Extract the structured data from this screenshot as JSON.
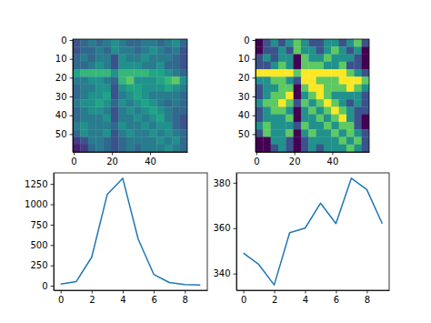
{
  "chart_data": [
    {
      "type": "heatmap",
      "x_edges": [
        -0.5,
        3.5,
        7.5,
        11.5,
        15.5,
        19.5,
        23.5,
        27.5,
        31.5,
        35.5,
        39.5,
        43.5,
        47.5,
        51.5,
        55.5,
        59.5
      ],
      "y_edges": [
        -0.5,
        3.5,
        7.5,
        11.5,
        15.5,
        19.5,
        23.5,
        27.5,
        31.5,
        35.5,
        39.5,
        43.5,
        47.5,
        51.5,
        55.5,
        59.5
      ],
      "cells": [
        [
          3,
          4,
          5,
          4,
          5,
          6,
          5,
          4,
          4,
          5,
          5,
          4,
          5,
          6,
          4
        ],
        [
          3,
          4,
          4,
          5,
          4,
          6,
          5,
          5,
          4,
          5,
          6,
          5,
          4,
          5,
          3
        ],
        [
          4,
          5,
          4,
          5,
          5,
          3,
          6,
          5,
          5,
          6,
          5,
          5,
          5,
          4,
          3
        ],
        [
          4,
          4,
          5,
          6,
          5,
          3,
          6,
          6,
          6,
          5,
          5,
          6,
          4,
          4,
          3
        ],
        [
          7,
          8,
          8,
          8,
          8,
          6,
          8,
          8,
          8,
          8,
          7,
          7,
          6,
          5,
          4
        ],
        [
          5,
          5,
          6,
          6,
          5,
          4,
          8,
          9,
          6,
          6,
          6,
          7,
          8,
          9,
          6
        ],
        [
          4,
          5,
          5,
          6,
          6,
          3,
          6,
          7,
          7,
          6,
          6,
          6,
          7,
          6,
          5
        ],
        [
          4,
          5,
          6,
          6,
          7,
          3,
          5,
          6,
          7,
          6,
          5,
          5,
          5,
          5,
          4
        ],
        [
          5,
          6,
          6,
          7,
          6,
          4,
          6,
          5,
          6,
          7,
          6,
          5,
          4,
          5,
          4
        ],
        [
          4,
          5,
          6,
          6,
          5,
          3,
          5,
          6,
          5,
          6,
          7,
          6,
          5,
          4,
          4
        ],
        [
          4,
          5,
          5,
          5,
          6,
          3,
          5,
          5,
          6,
          5,
          6,
          7,
          5,
          4,
          3
        ],
        [
          5,
          6,
          5,
          5,
          5,
          4,
          6,
          5,
          5,
          6,
          5,
          6,
          6,
          4,
          3
        ],
        [
          4,
          6,
          5,
          5,
          6,
          3,
          5,
          6,
          5,
          5,
          6,
          5,
          6,
          5,
          4
        ],
        [
          2,
          3,
          5,
          5,
          4,
          3,
          4,
          5,
          5,
          5,
          5,
          6,
          5,
          6,
          4
        ],
        [
          1,
          2,
          4,
          5,
          4,
          3,
          4,
          5,
          4,
          5,
          5,
          5,
          6,
          5,
          4
        ]
      ],
      "color_range": [
        0,
        12
      ],
      "xlim": [
        -0.5,
        59.5
      ],
      "ylim": [
        59.5,
        -0.5
      ],
      "xticks": [
        0,
        20,
        40
      ],
      "yticks": [
        0,
        10,
        20,
        30,
        40,
        50
      ]
    },
    {
      "type": "heatmap",
      "x_edges": [
        -0.5,
        3.5,
        7.5,
        11.5,
        15.5,
        19.5,
        23.5,
        27.5,
        31.5,
        35.5,
        39.5,
        43.5,
        47.5,
        51.5,
        55.5,
        59.5
      ],
      "y_edges": [
        -0.5,
        3.5,
        7.5,
        11.5,
        15.5,
        19.5,
        23.5,
        27.5,
        31.5,
        35.5,
        39.5,
        43.5,
        47.5,
        51.5,
        55.5,
        59.5
      ],
      "cells": [
        [
          3,
          4,
          5,
          4,
          5,
          6,
          5,
          4,
          4,
          5,
          5,
          4,
          5,
          6,
          4
        ],
        [
          3,
          4,
          4,
          5,
          4,
          6,
          5,
          5,
          4,
          5,
          6,
          5,
          4,
          5,
          3
        ],
        [
          4,
          5,
          4,
          5,
          5,
          3,
          6,
          5,
          5,
          6,
          5,
          5,
          5,
          4,
          3
        ],
        [
          4,
          4,
          5,
          6,
          5,
          3,
          6,
          6,
          6,
          5,
          5,
          6,
          4,
          4,
          3
        ],
        [
          7,
          8,
          8,
          8,
          8,
          6,
          8,
          8,
          8,
          8,
          7,
          7,
          6,
          5,
          4
        ],
        [
          5,
          5,
          6,
          6,
          5,
          4,
          8,
          9,
          6,
          6,
          6,
          7,
          8,
          9,
          6
        ],
        [
          4,
          5,
          5,
          6,
          6,
          3,
          6,
          7,
          7,
          6,
          6,
          6,
          7,
          6,
          5
        ],
        [
          4,
          5,
          6,
          6,
          7,
          3,
          5,
          6,
          7,
          6,
          5,
          5,
          5,
          5,
          4
        ],
        [
          5,
          6,
          6,
          7,
          6,
          4,
          6,
          5,
          6,
          7,
          6,
          5,
          4,
          5,
          4
        ],
        [
          4,
          5,
          6,
          6,
          5,
          3,
          5,
          6,
          5,
          6,
          7,
          6,
          5,
          4,
          4
        ],
        [
          4,
          5,
          5,
          5,
          6,
          3,
          5,
          5,
          6,
          5,
          6,
          7,
          5,
          4,
          3
        ],
        [
          5,
          6,
          5,
          5,
          5,
          4,
          6,
          5,
          5,
          6,
          5,
          6,
          6,
          4,
          3
        ],
        [
          4,
          6,
          5,
          5,
          6,
          3,
          5,
          6,
          5,
          5,
          6,
          5,
          6,
          5,
          4
        ],
        [
          2,
          3,
          5,
          5,
          4,
          3,
          4,
          5,
          5,
          5,
          5,
          6,
          5,
          6,
          4
        ],
        [
          1,
          2,
          4,
          5,
          4,
          3,
          4,
          5,
          4,
          5,
          5,
          5,
          6,
          5,
          4
        ]
      ],
      "color_range": [
        3,
        7
      ],
      "xlim": [
        -0.5,
        59.5
      ],
      "ylim": [
        59.5,
        -0.5
      ],
      "xticks": [
        0,
        20,
        40
      ],
      "yticks": [
        0,
        10,
        20,
        30,
        40,
        50
      ]
    },
    {
      "type": "line",
      "color": "#1f77b4",
      "x": [
        0,
        1,
        2,
        3,
        4,
        5,
        6,
        7,
        8,
        9
      ],
      "values": [
        20,
        50,
        350,
        1120,
        1320,
        570,
        140,
        40,
        15,
        10
      ],
      "xlim": [
        -0.45,
        9.45
      ],
      "ylim": [
        -55,
        1386
      ],
      "xticks": [
        0,
        2,
        4,
        6,
        8
      ],
      "yticks": [
        0,
        250,
        500,
        750,
        1000,
        1250
      ]
    },
    {
      "type": "line",
      "color": "#1f77b4",
      "x": [
        0,
        1,
        2,
        3,
        4,
        5,
        6,
        7,
        8,
        9
      ],
      "values": [
        349,
        344,
        335,
        358,
        360,
        371,
        362,
        382,
        377,
        362
      ],
      "xlim": [
        -0.45,
        9.45
      ],
      "ylim": [
        332.65,
        384.35
      ],
      "xticks": [
        0,
        2,
        4,
        6,
        8
      ],
      "yticks": [
        340,
        360,
        380
      ]
    }
  ]
}
